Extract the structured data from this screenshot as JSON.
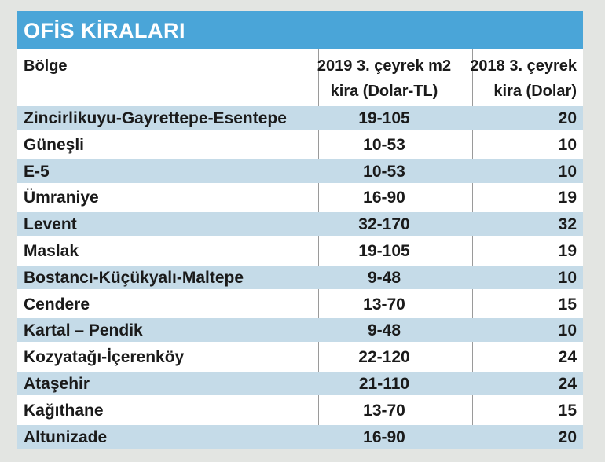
{
  "title": "OFİS KİRALARI",
  "headers": {
    "col0": "Bölge",
    "col1_line1": "2019 3. çeyrek m2",
    "col1_line2": "kira (Dolar-TL)",
    "col2_line1": "2018 3. çeyrek",
    "col2_line2": "kira (Dolar)"
  },
  "colors": {
    "title_bar": "#4aa5d8",
    "row_shade": "#c5dbe8"
  },
  "rows": [
    {
      "region": "Zincirlikuyu-Gayrettepe-Esentepe",
      "rent_2019": "19-105",
      "rent_2018": "20"
    },
    {
      "region": "Güneşli",
      "rent_2019": "10-53",
      "rent_2018": "10"
    },
    {
      "region": "E-5",
      "rent_2019": "10-53",
      "rent_2018": "10"
    },
    {
      "region": "Ümraniye",
      "rent_2019": "16-90",
      "rent_2018": "19"
    },
    {
      "region": "Levent",
      "rent_2019": "32-170",
      "rent_2018": "32"
    },
    {
      "region": "Maslak",
      "rent_2019": "19-105",
      "rent_2018": "19"
    },
    {
      "region": "Bostancı-Küçükyalı-Maltepe",
      "rent_2019": "9-48",
      "rent_2018": "10"
    },
    {
      "region": "Cendere",
      "rent_2019": "13-70",
      "rent_2018": "15"
    },
    {
      "region": "Kartal – Pendik",
      "rent_2019": "9-48",
      "rent_2018": "10"
    },
    {
      "region": "Kozyatağı-İçerenköy",
      "rent_2019": "22-120",
      "rent_2018": "24"
    },
    {
      "region": "Ataşehir",
      "rent_2019": "21-110",
      "rent_2018": "24"
    },
    {
      "region": "Kağıthane",
      "rent_2019": "13-70",
      "rent_2018": "15"
    },
    {
      "region": "Altunizade",
      "rent_2019": "16-90",
      "rent_2018": "20"
    }
  ]
}
